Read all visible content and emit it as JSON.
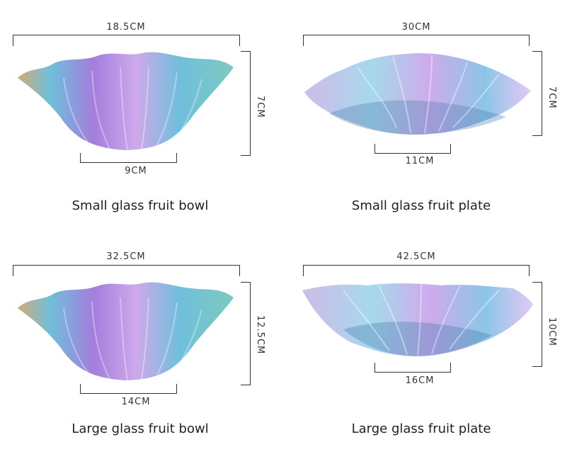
{
  "products": [
    {
      "top_dim": "18.5CM",
      "side_dim": "7CM",
      "base_dim": "9CM",
      "caption": "Small glass fruit bowl"
    },
    {
      "top_dim": "30CM",
      "side_dim": "7CM",
      "base_dim": "11CM",
      "caption": "Small glass fruit plate"
    },
    {
      "top_dim": "32.5CM",
      "side_dim": "12.5CM",
      "base_dim": "14CM",
      "caption": "Large glass fruit bowl"
    },
    {
      "top_dim": "42.5CM",
      "side_dim": "10CM",
      "base_dim": "16CM",
      "caption": "Large glass fruit plate"
    }
  ],
  "colors": {
    "purple": "#9a6fd8",
    "blue": "#5fb8d8",
    "amber": "#c9a46a",
    "teal": "#6fc3b8"
  }
}
